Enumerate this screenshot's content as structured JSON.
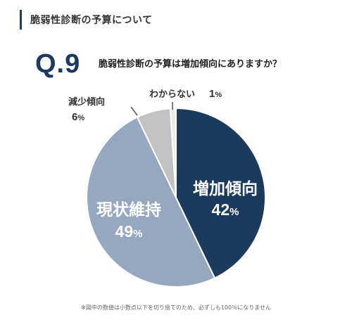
{
  "header": {
    "section_title": "脆弱性診断の予算について"
  },
  "question": {
    "number": "Q.9",
    "text": "脆弱性診断の予算は増加傾向にありますか？"
  },
  "chart_data": {
    "type": "pie",
    "title": "",
    "categories": [
      "増加傾向",
      "現状維持",
      "減少傾向",
      "わからない"
    ],
    "values": [
      42,
      49,
      6,
      1
    ],
    "value_labels": [
      "42",
      "49",
      "6",
      "1"
    ],
    "unit": "%",
    "colors": [
      "#1c3a5e",
      "#96a8bf",
      "#c2c2c2",
      "#ececec"
    ],
    "label_text_colors": [
      "#ffffff",
      "#ffffff",
      "#333333",
      "#333333"
    ],
    "start_angle_deg": 0,
    "direction": "clockwise"
  },
  "footnote": "※図中の数値は小数点以下を切り捨てのため、必ずしも100％になりません"
}
